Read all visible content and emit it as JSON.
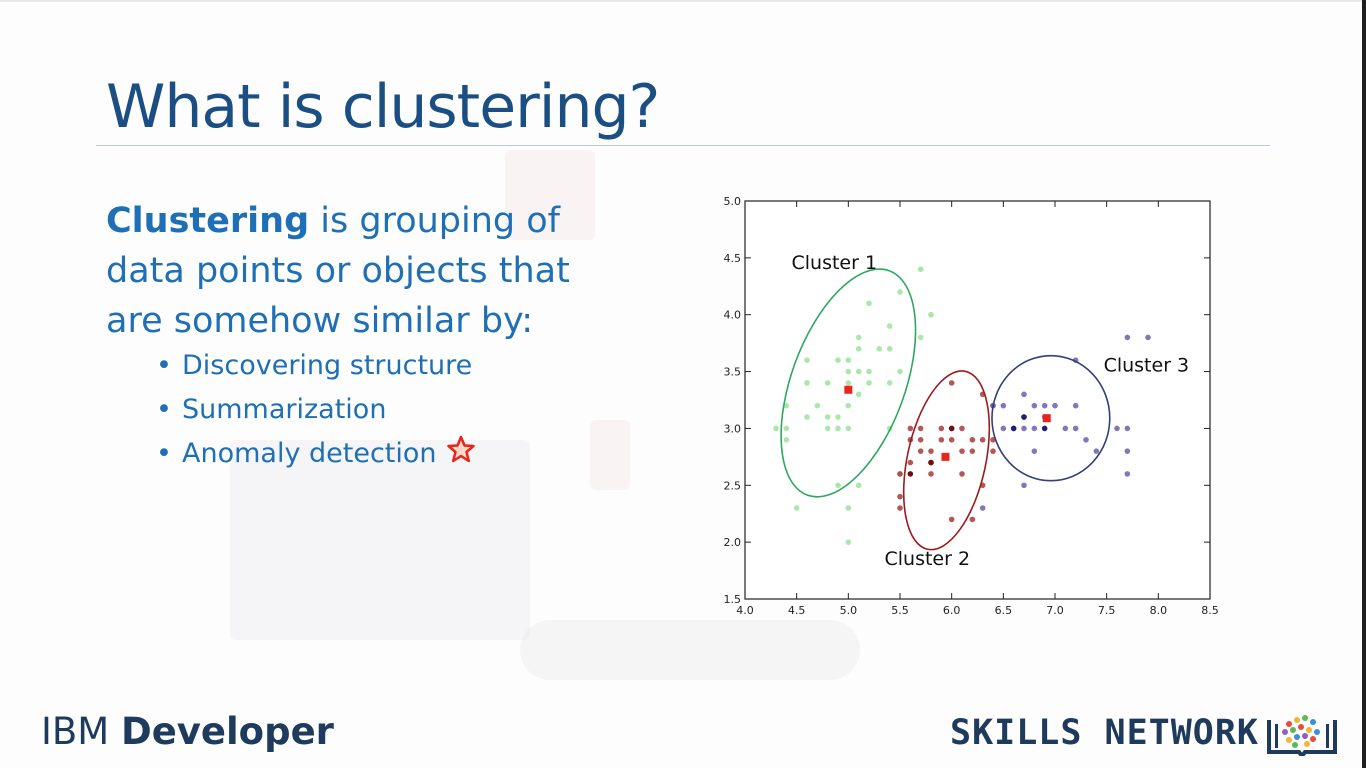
{
  "slide": {
    "title": "What is clustering?",
    "definition_term": "Clustering",
    "definition_rest": " is grouping of data points or objects that are somehow similar by:",
    "bullets": [
      "Discovering structure",
      "Summarization",
      "Anomaly detection"
    ]
  },
  "footer": {
    "brand_left_1": "IBM ",
    "brand_left_2": "Developer",
    "brand_right": "SKILLS NETWORK"
  },
  "colors": {
    "title": "#1b4f83",
    "text": "#1e6fb5",
    "cluster1": "#4caf6a",
    "cluster2": "#8b1a1a",
    "cluster3": "#2e3f78",
    "centroid": "#e8241c"
  },
  "chart_data": {
    "type": "scatter",
    "xlim": [
      4.0,
      8.5
    ],
    "ylim": [
      1.5,
      5.0
    ],
    "x_ticks": [
      "4.0",
      "4.5",
      "5.0",
      "5.5",
      "6.0",
      "6.5",
      "7.0",
      "7.5",
      "8.0",
      "8.5"
    ],
    "y_ticks": [
      "1.5",
      "2.0",
      "2.5",
      "3.0",
      "3.5",
      "4.0",
      "4.5",
      "5.0"
    ],
    "annotations": [
      "Cluster 1",
      "Cluster 2",
      "Cluster 3"
    ],
    "series": [
      {
        "color": "#9be39b",
        "points": [
          [
            4.3,
            3.0
          ],
          [
            4.4,
            2.9
          ],
          [
            4.4,
            3.0
          ],
          [
            4.4,
            3.2
          ],
          [
            4.5,
            2.3
          ],
          [
            4.6,
            3.1
          ],
          [
            4.6,
            3.4
          ],
          [
            4.6,
            3.6
          ],
          [
            4.7,
            3.2
          ],
          [
            4.8,
            3.0
          ],
          [
            4.8,
            3.1
          ],
          [
            4.8,
            3.4
          ],
          [
            4.9,
            3.0
          ],
          [
            4.9,
            3.1
          ],
          [
            4.9,
            2.5
          ],
          [
            5.0,
            3.0
          ],
          [
            5.0,
            3.2
          ],
          [
            5.0,
            3.4
          ],
          [
            5.0,
            3.5
          ],
          [
            5.0,
            3.6
          ],
          [
            5.0,
            2.3
          ],
          [
            5.0,
            2.0
          ],
          [
            5.1,
            3.3
          ],
          [
            5.1,
            3.5
          ],
          [
            5.1,
            3.7
          ],
          [
            5.1,
            3.8
          ],
          [
            5.2,
            3.4
          ],
          [
            5.2,
            3.5
          ],
          [
            5.3,
            3.7
          ],
          [
            5.4,
            3.4
          ],
          [
            5.4,
            3.7
          ],
          [
            5.4,
            3.9
          ],
          [
            5.5,
            3.5
          ],
          [
            5.5,
            4.2
          ],
          [
            5.7,
            3.8
          ],
          [
            5.7,
            4.4
          ],
          [
            5.8,
            4.0
          ],
          [
            5.2,
            4.1
          ],
          [
            5.4,
            3.0
          ],
          [
            4.9,
            3.6
          ],
          [
            5.1,
            2.5
          ],
          [
            5.5,
            2.6
          ]
        ]
      },
      {
        "color": "#a83a3a",
        "points": [
          [
            5.5,
            2.3
          ],
          [
            5.5,
            2.4
          ],
          [
            5.5,
            2.6
          ],
          [
            5.6,
            2.7
          ],
          [
            5.6,
            2.9
          ],
          [
            5.6,
            3.0
          ],
          [
            5.7,
            2.8
          ],
          [
            5.7,
            2.9
          ],
          [
            5.7,
            3.0
          ],
          [
            5.8,
            2.6
          ],
          [
            5.8,
            2.7
          ],
          [
            5.8,
            2.8
          ],
          [
            5.9,
            3.0
          ],
          [
            6.0,
            2.2
          ],
          [
            6.0,
            2.9
          ],
          [
            6.0,
            3.0
          ],
          [
            6.0,
            3.4
          ],
          [
            6.1,
            2.8
          ],
          [
            6.1,
            3.0
          ],
          [
            6.2,
            2.2
          ],
          [
            6.2,
            2.8
          ],
          [
            6.2,
            2.9
          ],
          [
            6.3,
            2.5
          ],
          [
            6.3,
            2.9
          ],
          [
            6.3,
            3.3
          ],
          [
            6.4,
            2.8
          ],
          [
            6.4,
            2.9
          ],
          [
            6.4,
            3.2
          ],
          [
            5.9,
            2.9
          ],
          [
            6.1,
            2.6
          ]
        ]
      },
      {
        "color": "#6b5fb0",
        "points": [
          [
            6.4,
            3.2
          ],
          [
            6.5,
            3.0
          ],
          [
            6.5,
            3.2
          ],
          [
            6.6,
            3.0
          ],
          [
            6.7,
            3.0
          ],
          [
            6.7,
            3.1
          ],
          [
            6.7,
            3.3
          ],
          [
            6.8,
            3.0
          ],
          [
            6.8,
            3.2
          ],
          [
            6.9,
            3.1
          ],
          [
            6.9,
            3.2
          ],
          [
            7.0,
            3.2
          ],
          [
            7.1,
            3.0
          ],
          [
            7.2,
            3.0
          ],
          [
            7.2,
            3.2
          ],
          [
            7.2,
            3.6
          ],
          [
            7.3,
            2.9
          ],
          [
            7.4,
            2.8
          ],
          [
            7.6,
            3.0
          ],
          [
            7.7,
            2.6
          ],
          [
            7.7,
            2.8
          ],
          [
            7.7,
            3.0
          ],
          [
            7.7,
            3.8
          ],
          [
            7.9,
            3.8
          ],
          [
            6.7,
            2.5
          ],
          [
            6.8,
            2.8
          ],
          [
            6.3,
            2.3
          ]
        ]
      }
    ],
    "centroids": [
      [
        5.0,
        3.34
      ],
      [
        5.94,
        2.75
      ],
      [
        6.92,
        3.09
      ]
    ]
  }
}
